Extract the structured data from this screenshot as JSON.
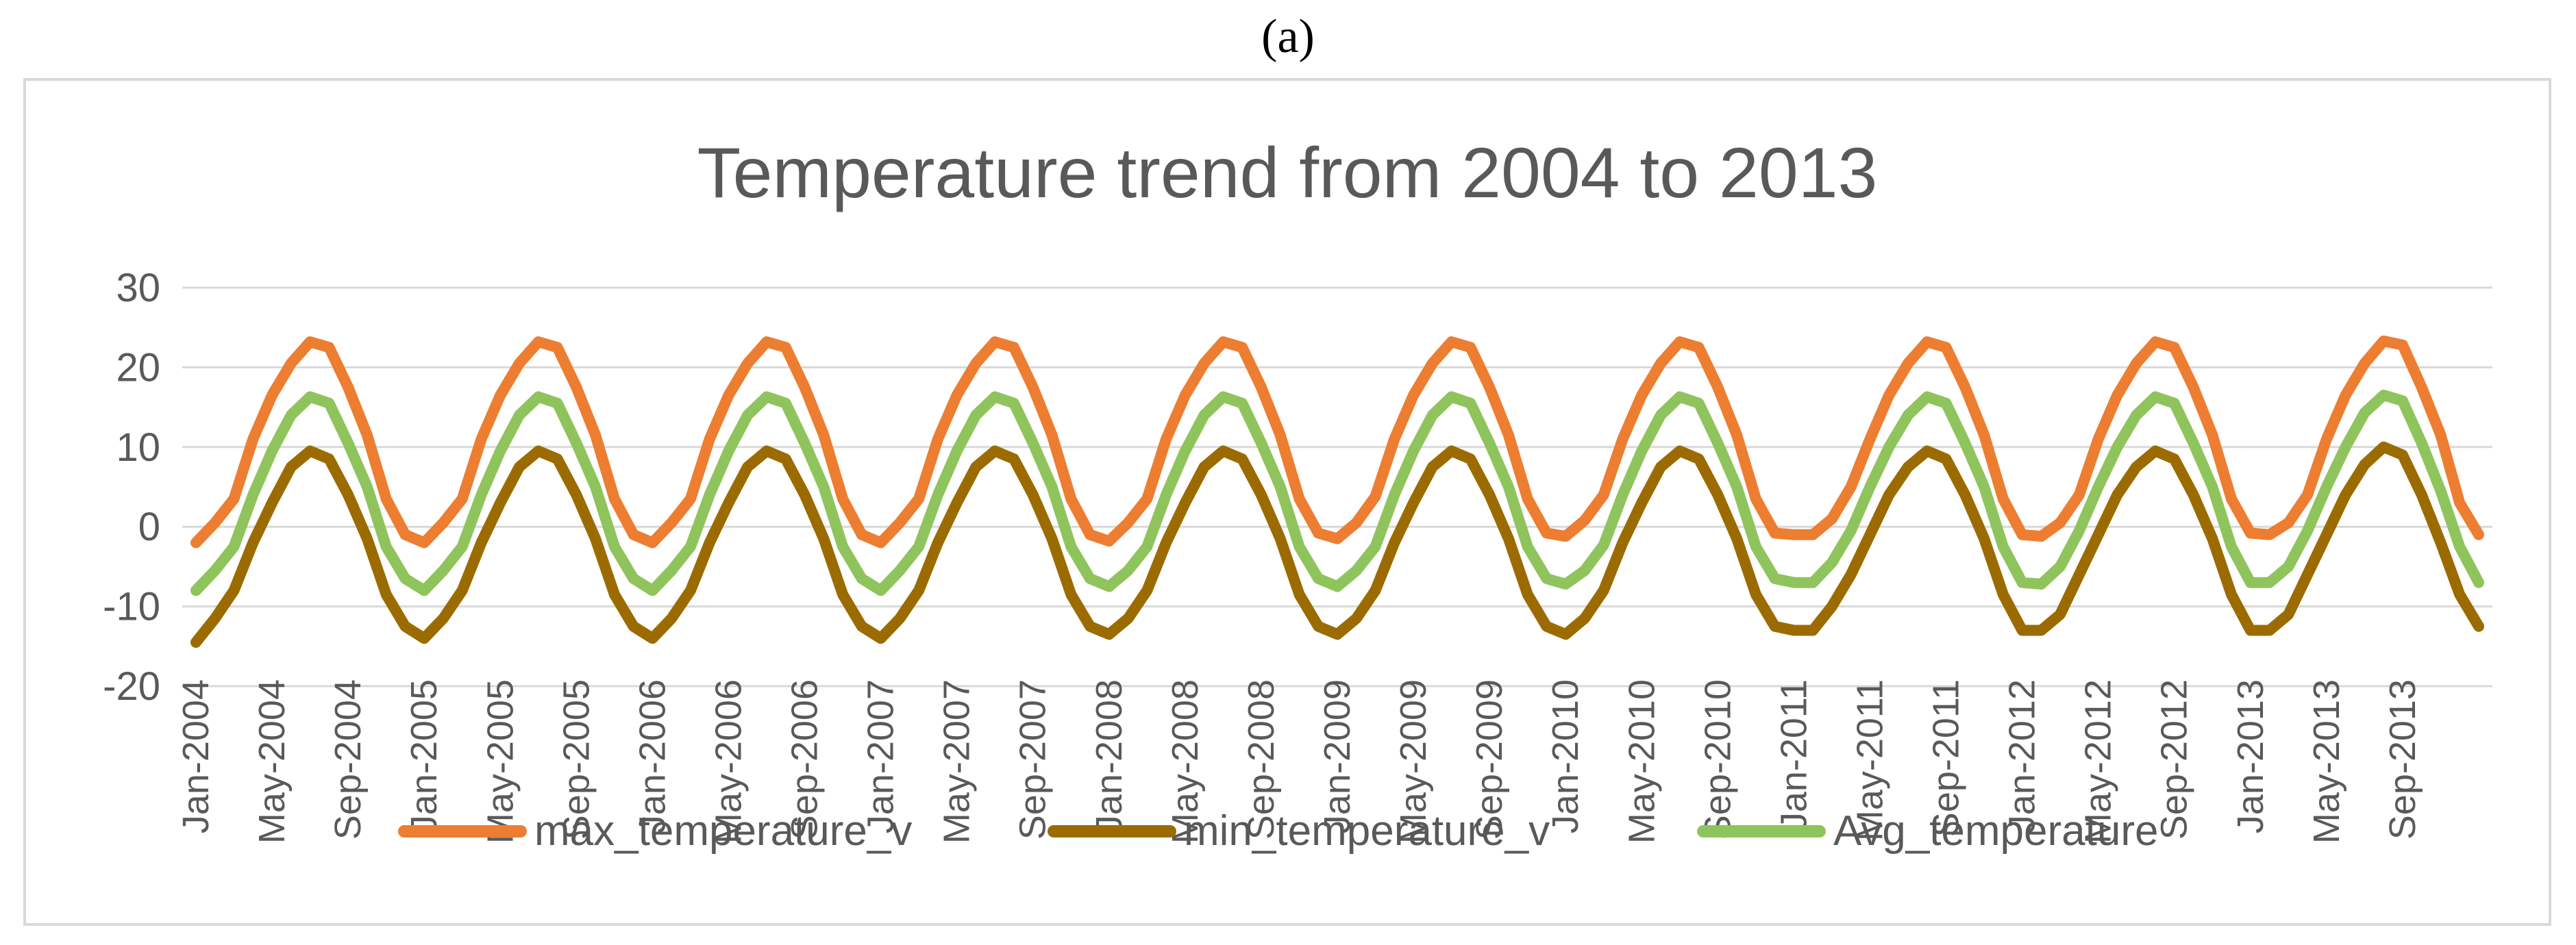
{
  "figure_label": "(a)",
  "chart_data": {
    "type": "line",
    "title": "Temperature trend from 2004 to 2013",
    "xlabel": "",
    "ylabel": "",
    "ylim": [
      -20,
      30
    ],
    "yticks": [
      30,
      20,
      10,
      0,
      -10,
      -20
    ],
    "grid": true,
    "legend_position": "bottom",
    "x_start": "Jan-2004",
    "x_end": "Dec-2013",
    "xtick_labels": [
      "Jan-2004",
      "May-2004",
      "Sep-2004",
      "Jan-2005",
      "May-2005",
      "Sep-2005",
      "Jan-2006",
      "May-2006",
      "Sep-2006",
      "Jan-2007",
      "May-2007",
      "Sep-2007",
      "Jan-2008",
      "May-2008",
      "Sep-2008",
      "Jan-2009",
      "May-2009",
      "Sep-2009",
      "Jan-2010",
      "May-2010",
      "Sep-2010",
      "Jan-2011",
      "May-2011",
      "Sep-2011",
      "Jan-2012",
      "May-2012",
      "Sep-2012",
      "Jan-2013",
      "May-2013",
      "Sep-2013"
    ],
    "series": [
      {
        "name": "max_temperature_v",
        "color": "#ed7d31",
        "values": [
          -2,
          0.5,
          3.5,
          11,
          16.5,
          20.5,
          23.2,
          22.5,
          17.5,
          11.5,
          3.5,
          -1,
          -2,
          0.5,
          3.5,
          11,
          16.5,
          20.5,
          23.2,
          22.5,
          17.5,
          11.5,
          3.5,
          -1,
          -2,
          0.5,
          3.5,
          11,
          16.5,
          20.5,
          23.2,
          22.5,
          17.5,
          11.5,
          3.5,
          -1,
          -2,
          0.5,
          3.5,
          11,
          16.5,
          20.5,
          23.2,
          22.5,
          17.5,
          11.5,
          3.5,
          -1,
          -1.8,
          0.5,
          3.5,
          11,
          16.5,
          20.5,
          23.2,
          22.5,
          17.5,
          11.5,
          3.5,
          -0.8,
          -1.5,
          0.5,
          3.8,
          11,
          16.5,
          20.5,
          23.2,
          22.5,
          17.5,
          11.5,
          3.5,
          -0.8,
          -1.2,
          0.8,
          4,
          11,
          16.5,
          20.5,
          23.2,
          22.5,
          17.5,
          11.5,
          3.5,
          -0.8,
          -1,
          -1,
          1,
          5,
          11,
          16.5,
          20.5,
          23.2,
          22.5,
          17.5,
          11.5,
          3.5,
          -1,
          -1.2,
          0.5,
          4,
          11,
          16.5,
          20.5,
          23.2,
          22.5,
          17.5,
          11.5,
          3.5,
          -0.8,
          -1,
          0.5,
          4,
          11,
          16.5,
          20.5,
          23.3,
          22.8,
          17.5,
          11.5,
          3,
          -1
        ]
      },
      {
        "name": "min_temperature_v",
        "color": "#9c6b00",
        "values": [
          -14.5,
          -11.5,
          -8,
          -2,
          3,
          7.5,
          9.5,
          8.5,
          4,
          -1.5,
          -8.5,
          -12.5,
          -14,
          -11.5,
          -8,
          -2,
          3,
          7.5,
          9.5,
          8.5,
          4,
          -1.5,
          -8.5,
          -12.5,
          -14,
          -11.5,
          -8,
          -2,
          3,
          7.5,
          9.5,
          8.5,
          4,
          -1.5,
          -8.5,
          -12.5,
          -14,
          -11.5,
          -8,
          -2,
          3,
          7.5,
          9.5,
          8.5,
          4,
          -1.5,
          -8.5,
          -12.5,
          -13.5,
          -11.5,
          -8,
          -2,
          3,
          7.5,
          9.5,
          8.5,
          4,
          -1.5,
          -8.5,
          -12.5,
          -13.5,
          -11.5,
          -8,
          -2,
          3,
          7.5,
          9.5,
          8.5,
          4,
          -1.5,
          -8.5,
          -12.5,
          -13.5,
          -11.5,
          -8,
          -2,
          3,
          7.5,
          9.5,
          8.5,
          4,
          -1.5,
          -8.5,
          -12.5,
          -13,
          -13,
          -10,
          -6,
          -1,
          4,
          7.5,
          9.5,
          8.5,
          4,
          -1.5,
          -8.5,
          -13,
          -13,
          -11,
          -6,
          -1,
          4,
          7.5,
          9.5,
          8.5,
          4,
          -1.5,
          -8.5,
          -13,
          -13,
          -11,
          -6,
          -1,
          4,
          7.8,
          10,
          9,
          4,
          -2,
          -8.5,
          -12.5
        ]
      },
      {
        "name": "Avg_temperature",
        "color": "#8fc45d",
        "values": [
          -8,
          -5.5,
          -2.5,
          4,
          9.5,
          14,
          16.3,
          15.5,
          10.5,
          5,
          -2.5,
          -6.5,
          -8,
          -5.5,
          -2.5,
          4,
          9.5,
          14,
          16.3,
          15.5,
          10.5,
          5,
          -2.5,
          -6.5,
          -8,
          -5.5,
          -2.5,
          4,
          9.5,
          14,
          16.3,
          15.5,
          10.5,
          5,
          -2.5,
          -6.5,
          -8,
          -5.5,
          -2.5,
          4,
          9.5,
          14,
          16.3,
          15.5,
          10.5,
          5,
          -2.5,
          -6.5,
          -7.5,
          -5.5,
          -2.5,
          4,
          9.5,
          14,
          16.3,
          15.5,
          10.5,
          5,
          -2.5,
          -6.5,
          -7.5,
          -5.5,
          -2.5,
          4,
          9.5,
          14,
          16.3,
          15.5,
          10.5,
          5,
          -2.5,
          -6.5,
          -7.2,
          -5.5,
          -2.3,
          4,
          9.5,
          14,
          16.3,
          15.5,
          10.5,
          5,
          -2.5,
          -6.5,
          -7,
          -7,
          -4.5,
          -0.5,
          5,
          10,
          14,
          16.3,
          15.5,
          10.5,
          5,
          -2.5,
          -7,
          -7.2,
          -5,
          -0.5,
          5,
          10,
          14,
          16.3,
          15.5,
          10.5,
          5,
          -2.5,
          -7,
          -7,
          -5,
          -0.5,
          5,
          10,
          14.3,
          16.5,
          15.8,
          10.5,
          4.5,
          -2.5,
          -7
        ]
      }
    ]
  }
}
